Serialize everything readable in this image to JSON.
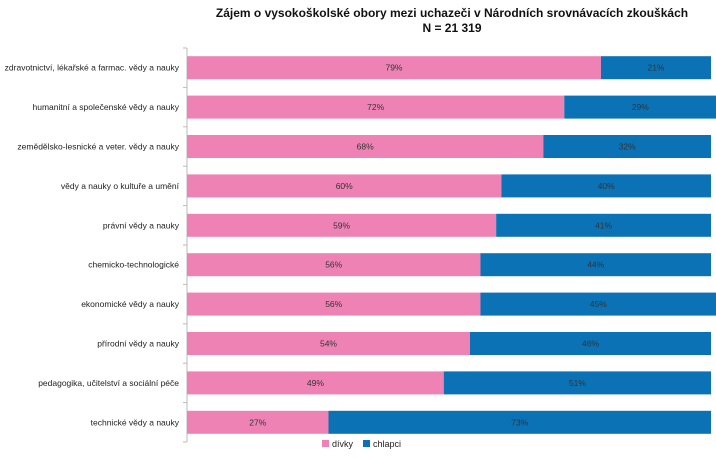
{
  "chart_data": {
    "type": "bar",
    "orientation": "horizontal",
    "stacked": true,
    "title": "Zájem o vysokoškolské obory mezi uchazeči v Národních srovnávacích zkouškách",
    "subtitle": "N = 21 319",
    "categories": [
      "zdravotnictví, lékařské a farmac. vědy a nauky",
      "humanitní a společenské vědy a nauky",
      "zemědělsko-lesnické a veter. vědy a nauky",
      "vědy a nauky o kultuře a umění",
      "právní vědy a nauky",
      "chemicko-technologické",
      "ekonomické vědy a nauky",
      "přírodní vědy a nauky",
      "pedagogika, učitelství a sociální péče",
      "technické vědy a nauky"
    ],
    "series": [
      {
        "name": "dívky",
        "color": "#ee82b4",
        "values": [
          79,
          72,
          68,
          60,
          59,
          56,
          56,
          54,
          49,
          27
        ],
        "labels": [
          "79%",
          "72%",
          "68%",
          "60%",
          "59%",
          "56%",
          "56%",
          "54%",
          "49%",
          "27%"
        ]
      },
      {
        "name": "chlapci",
        "color": "#0b72b5",
        "values": [
          21,
          29,
          32,
          40,
          41,
          44,
          45,
          46,
          51,
          73
        ],
        "labels": [
          "21%",
          "29%",
          "32%",
          "40%",
          "41%",
          "44%",
          "45%",
          "46%",
          "51%",
          "73%"
        ]
      }
    ],
    "xlim": [
      0,
      100
    ],
    "legend_position": "bottom",
    "grid": false
  }
}
